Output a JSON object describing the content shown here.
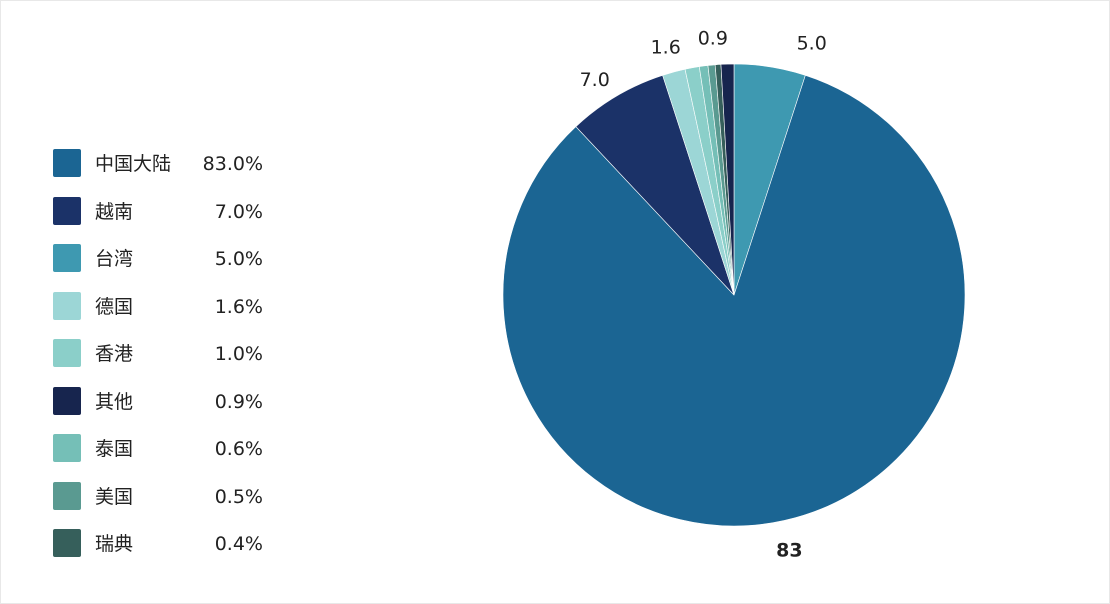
{
  "chart_data": {
    "type": "pie",
    "title": "",
    "categories": [
      "中国大陆",
      "越南",
      "台湾",
      "德国",
      "香港",
      "其他",
      "泰国",
      "美国",
      "瑞典"
    ],
    "values": [
      83.0,
      7.0,
      5.0,
      1.6,
      1.0,
      0.9,
      0.6,
      0.5,
      0.4
    ],
    "legend": {
      "placement": "left",
      "items": [
        {
          "label": "中国大陆",
          "value": "83.0%",
          "color": "#1b6593"
        },
        {
          "label": "越南",
          "value": "7.0%",
          "color": "#1b3268"
        },
        {
          "label": "台湾",
          "value": "5.0%",
          "color": "#3e99b1"
        },
        {
          "label": "德国",
          "value": "1.6%",
          "color": "#9cd6d6"
        },
        {
          "label": "香港",
          "value": "1.0%",
          "color": "#8bcfc9"
        },
        {
          "label": "其他",
          "value": "0.9%",
          "color": "#17254e"
        },
        {
          "label": "泰国",
          "value": "0.6%",
          "color": "#75bfb7"
        },
        {
          "label": "美国",
          "value": "0.5%",
          "color": "#5a9a91"
        },
        {
          "label": "瑞典",
          "value": "0.4%",
          "color": "#365f5b"
        }
      ]
    },
    "slices": [
      {
        "label": "台湾",
        "value": 5.0,
        "color": "#3e99b1",
        "data_label": "5.0",
        "bold": false
      },
      {
        "label": "中国大陆",
        "value": 83.0,
        "color": "#1b6593",
        "data_label": "83",
        "bold": true
      },
      {
        "label": "越南",
        "value": 7.0,
        "color": "#1b3268",
        "data_label": "7.0",
        "bold": false
      },
      {
        "label": "德国",
        "value": 1.6,
        "color": "#9cd6d6",
        "data_label": "1.6",
        "bold": false
      },
      {
        "label": "香港",
        "value": 1.0,
        "color": "#8bcfc9",
        "data_label": "",
        "bold": false
      },
      {
        "label": "泰国",
        "value": 0.6,
        "color": "#75bfb7",
        "data_label": "",
        "bold": false
      },
      {
        "label": "美国",
        "value": 0.5,
        "color": "#5a9a91",
        "data_label": "",
        "bold": false
      },
      {
        "label": "瑞典",
        "value": 0.4,
        "color": "#365f5b",
        "data_label": "",
        "bold": false
      },
      {
        "label": "其他",
        "value": 0.9,
        "color": "#17254e",
        "data_label": "0.9",
        "bold": false
      }
    ]
  }
}
